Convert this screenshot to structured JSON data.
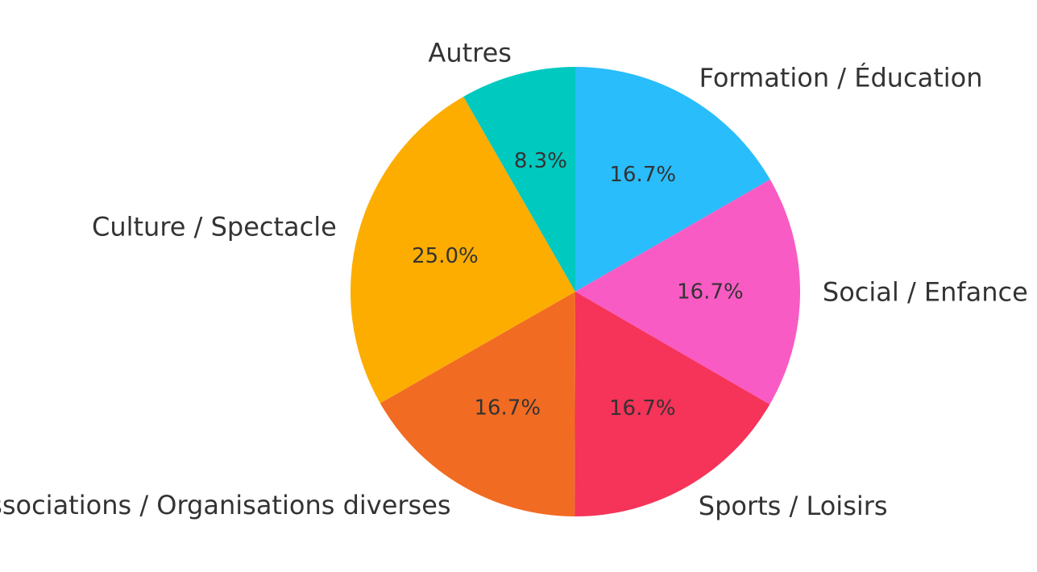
{
  "chart_data": {
    "type": "pie",
    "title": "",
    "start_angle_deg": 90,
    "direction": "clockwise",
    "slices": [
      {
        "label": "Formation / Éducation",
        "value": 16.7,
        "pct_label": "16.7%",
        "color": "#29BDFB"
      },
      {
        "label": "Social / Enfance",
        "value": 16.7,
        "pct_label": "16.7%",
        "color": "#F95BC4"
      },
      {
        "label": "Sports / Loisirs",
        "value": 16.7,
        "pct_label": "16.7%",
        "color": "#F63359"
      },
      {
        "label": "Associations / Organisations diverses",
        "value": 16.7,
        "pct_label": "16.7%",
        "color": "#F26B22"
      },
      {
        "label": "Culture / Spectacle",
        "value": 25.0,
        "pct_label": "25.0%",
        "color": "#FDAD00"
      },
      {
        "label": "Autres",
        "value": 8.3,
        "pct_label": "8.3%",
        "color": "#00C9C0"
      }
    ]
  }
}
